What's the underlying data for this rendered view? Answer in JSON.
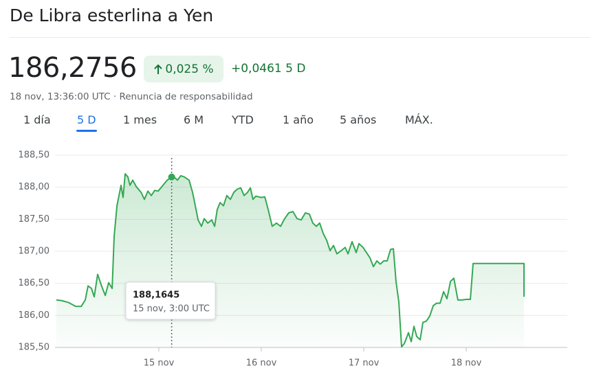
{
  "header": {
    "title": "De Libra esterlina a Yen"
  },
  "quote": {
    "price": "186,2756",
    "change_percent": "0,025 %",
    "change": "+0,0461",
    "period": "5 D",
    "timestamp": "18 nov, 13:36:00 UTC",
    "separator": "·",
    "disclaimer": "Renuncia de responsabilidad"
  },
  "tabs": [
    "1 día",
    "5 D",
    "1 mes",
    "6 M",
    "YTD",
    "1 año",
    "5 años",
    "MÁX."
  ],
  "active_tab": 1,
  "chart_data": {
    "type": "line",
    "x": [
      14,
      14.054,
      14.121,
      14.188,
      14.242,
      14.282,
      14.309,
      14.342,
      14.369,
      14.403,
      14.443,
      14.477,
      14.51,
      14.544,
      14.564,
      14.591,
      14.631,
      14.651,
      14.671,
      14.698,
      14.718,
      14.745,
      14.779,
      14.826,
      14.859,
      14.893,
      14.926,
      14.96,
      14.993,
      15.04,
      15.081,
      15.125,
      15.148,
      15.181,
      15.215,
      15.248,
      15.295,
      15.329,
      15.356,
      15.383,
      15.416,
      15.443,
      15.477,
      15.517,
      15.544,
      15.57,
      15.597,
      15.631,
      15.664,
      15.698,
      15.732,
      15.765,
      15.799,
      15.832,
      15.866,
      15.893,
      15.919,
      15.946,
      16.0,
      16.034,
      16.067,
      16.107,
      16.148,
      16.188,
      16.228,
      16.268,
      16.309,
      16.349,
      16.389,
      16.43,
      16.47,
      16.503,
      16.537,
      16.57,
      16.604,
      16.638,
      16.671,
      16.705,
      16.738,
      16.779,
      16.819,
      16.846,
      16.886,
      16.926,
      16.953,
      16.993,
      17.027,
      17.06,
      17.094,
      17.128,
      17.161,
      17.195,
      17.228,
      17.262,
      17.289,
      17.315,
      17.342,
      17.369,
      17.396,
      17.436,
      17.463,
      17.49,
      17.517,
      17.55,
      17.577,
      17.611,
      17.644,
      17.678,
      17.711,
      17.745,
      17.779,
      17.812,
      17.846,
      17.879,
      17.919,
      17.96,
      18.0,
      18.04,
      18.067,
      18.148,
      18.282,
      18.416,
      18.564,
      18.564
    ],
    "series": [
      {
        "color": "#34a853",
        "values": [
          186.24,
          186.23,
          186.2,
          186.14,
          186.14,
          186.24,
          186.46,
          186.42,
          186.29,
          186.64,
          186.45,
          186.31,
          186.51,
          186.42,
          187.23,
          187.71,
          188.03,
          187.84,
          188.21,
          188.16,
          188.03,
          188.11,
          188.01,
          187.92,
          187.81,
          187.94,
          187.87,
          187.95,
          187.94,
          188.03,
          188.11,
          188.16,
          188.16,
          188.11,
          188.18,
          188.16,
          188.11,
          187.92,
          187.71,
          187.49,
          187.39,
          187.51,
          187.44,
          187.49,
          187.39,
          187.65,
          187.76,
          187.71,
          187.87,
          187.81,
          187.92,
          187.97,
          187.99,
          187.87,
          187.92,
          187.99,
          187.81,
          187.86,
          187.84,
          187.85,
          187.65,
          187.39,
          187.44,
          187.39,
          187.51,
          187.6,
          187.62,
          187.51,
          187.49,
          187.6,
          187.58,
          187.44,
          187.39,
          187.44,
          187.28,
          187.17,
          187.01,
          187.09,
          186.96,
          187.01,
          187.06,
          186.96,
          187.15,
          186.98,
          187.12,
          187.06,
          186.98,
          186.9,
          186.76,
          186.85,
          186.8,
          186.85,
          186.85,
          187.03,
          187.04,
          186.53,
          186.21,
          185.51,
          185.56,
          185.73,
          185.59,
          185.83,
          185.67,
          185.62,
          185.89,
          185.91,
          185.99,
          186.15,
          186.19,
          186.19,
          186.37,
          186.26,
          186.53,
          186.58,
          186.24,
          186.24,
          186.25,
          186.25,
          186.81,
          186.81,
          186.81,
          186.81,
          186.81,
          186.29
        ]
      }
    ],
    "xlim": [
      14,
      19
    ],
    "xticks": [
      {
        "value": 15,
        "label": "15 nov"
      },
      {
        "value": 16,
        "label": "16 nov"
      },
      {
        "value": 17,
        "label": "17 nov"
      },
      {
        "value": 18,
        "label": "18 nov"
      }
    ],
    "ylim": [
      185.5,
      188.5
    ],
    "yticks": [
      {
        "value": 185.5,
        "label": "185,50"
      },
      {
        "value": 186,
        "label": "186,00"
      },
      {
        "value": 186.5,
        "label": "186,50"
      },
      {
        "value": 187,
        "label": "187,00"
      },
      {
        "value": 187.5,
        "label": "187,50"
      },
      {
        "value": 188,
        "label": "188,00"
      },
      {
        "value": 188.5,
        "label": "188,50"
      }
    ],
    "grid": true,
    "highlight": 31,
    "tooltip": {
      "value": "188,1645",
      "label": "15 nov, 3:00 UTC"
    }
  }
}
